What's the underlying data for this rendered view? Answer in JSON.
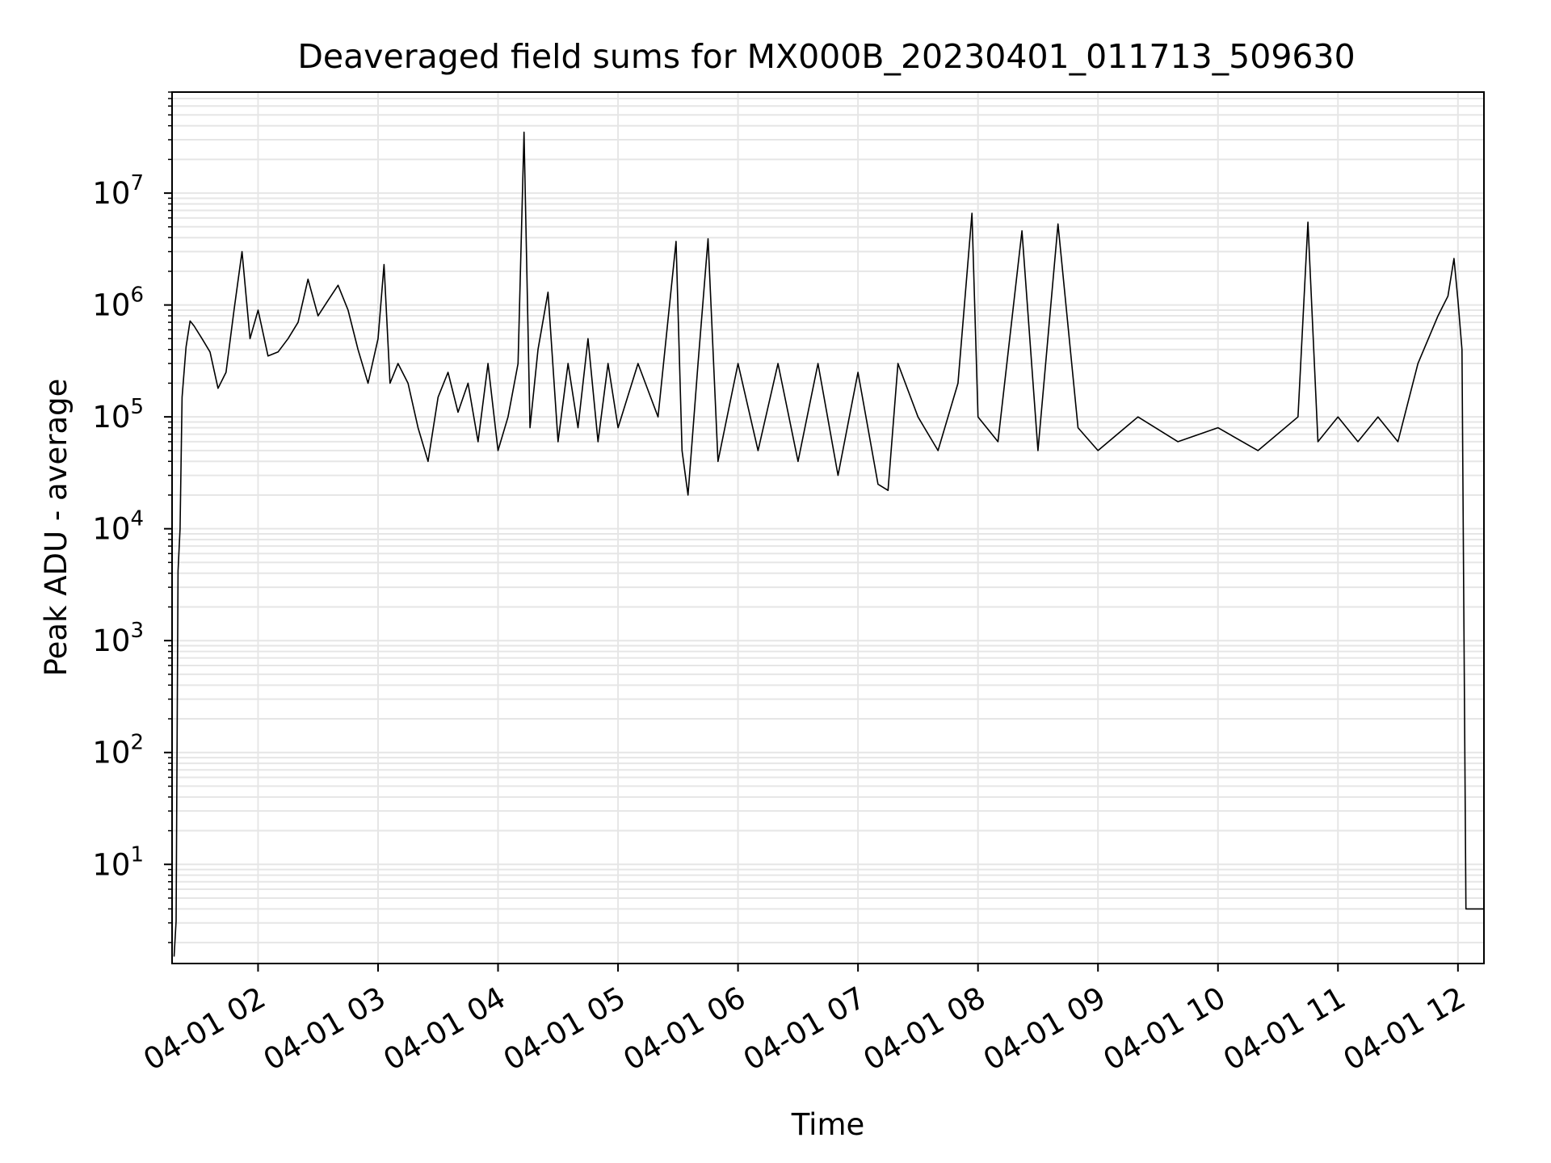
{
  "chart_data": {
    "type": "line",
    "title": "Deaveraged field sums for MX000B_20230401_011713_509630",
    "xlabel": "Time",
    "ylabel": "Peak ADU - average",
    "yscale": "log",
    "ylim": [
      1.3,
      80000000
    ],
    "xlim": [
      "2023-04-01 01:17",
      "2023-04-01 12:13"
    ],
    "grid": true,
    "line_color": "#000000",
    "grid_color": "#e6e6e6",
    "x_ticks": [
      {
        "t": "2023-04-01 02:00",
        "label": "04-01 02"
      },
      {
        "t": "2023-04-01 03:00",
        "label": "04-01 03"
      },
      {
        "t": "2023-04-01 04:00",
        "label": "04-01 04"
      },
      {
        "t": "2023-04-01 05:00",
        "label": "04-01 05"
      },
      {
        "t": "2023-04-01 06:00",
        "label": "04-01 06"
      },
      {
        "t": "2023-04-01 07:00",
        "label": "04-01 07"
      },
      {
        "t": "2023-04-01 08:00",
        "label": "04-01 08"
      },
      {
        "t": "2023-04-01 09:00",
        "label": "04-01 09"
      },
      {
        "t": "2023-04-01 10:00",
        "label": "04-01 10"
      },
      {
        "t": "2023-04-01 11:00",
        "label": "04-01 11"
      },
      {
        "t": "2023-04-01 12:00",
        "label": "04-01 12"
      }
    ],
    "y_ticks": [
      {
        "value": 10,
        "base": "10",
        "exp": "1"
      },
      {
        "value": 100,
        "base": "10",
        "exp": "2"
      },
      {
        "value": 1000,
        "base": "10",
        "exp": "3"
      },
      {
        "value": 10000,
        "base": "10",
        "exp": "4"
      },
      {
        "value": 100000,
        "base": "10",
        "exp": "5"
      },
      {
        "value": 1000000,
        "base": "10",
        "exp": "6"
      },
      {
        "value": 10000000,
        "base": "10",
        "exp": "7"
      }
    ],
    "series": [
      {
        "points": [
          [
            "2023-04-01 01:18",
            1.5
          ],
          [
            "2023-04-01 01:19",
            3.1
          ],
          [
            "2023-04-01 01:20",
            4200
          ],
          [
            "2023-04-01 01:21",
            10000
          ],
          [
            "2023-04-01 01:22",
            150000
          ],
          [
            "2023-04-01 01:24",
            420000
          ],
          [
            "2023-04-01 01:26",
            720000
          ],
          [
            "2023-04-01 01:28",
            650000
          ],
          [
            "2023-04-01 01:32",
            500000
          ],
          [
            "2023-04-01 01:36",
            380000
          ],
          [
            "2023-04-01 01:40",
            180000
          ],
          [
            "2023-04-01 01:44",
            250000
          ],
          [
            "2023-04-01 01:48",
            900000
          ],
          [
            "2023-04-01 01:52",
            3000000
          ],
          [
            "2023-04-01 01:56",
            500000
          ],
          [
            "2023-04-01 02:00",
            900000
          ],
          [
            "2023-04-01 02:05",
            350000
          ],
          [
            "2023-04-01 02:10",
            380000
          ],
          [
            "2023-04-01 02:15",
            500000
          ],
          [
            "2023-04-01 02:20",
            700000
          ],
          [
            "2023-04-01 02:25",
            1700000
          ],
          [
            "2023-04-01 02:30",
            800000
          ],
          [
            "2023-04-01 02:35",
            1100000
          ],
          [
            "2023-04-01 02:40",
            1500000
          ],
          [
            "2023-04-01 02:45",
            900000
          ],
          [
            "2023-04-01 02:50",
            400000
          ],
          [
            "2023-04-01 02:55",
            200000
          ],
          [
            "2023-04-01 03:00",
            500000
          ],
          [
            "2023-04-01 03:03",
            2300000
          ],
          [
            "2023-04-01 03:06",
            200000
          ],
          [
            "2023-04-01 03:10",
            300000
          ],
          [
            "2023-04-01 03:15",
            200000
          ],
          [
            "2023-04-01 03:20",
            80000
          ],
          [
            "2023-04-01 03:25",
            40000
          ],
          [
            "2023-04-01 03:30",
            150000
          ],
          [
            "2023-04-01 03:35",
            250000
          ],
          [
            "2023-04-01 03:40",
            110000
          ],
          [
            "2023-04-01 03:45",
            200000
          ],
          [
            "2023-04-01 03:50",
            60000
          ],
          [
            "2023-04-01 03:55",
            300000
          ],
          [
            "2023-04-01 04:00",
            50000
          ],
          [
            "2023-04-01 04:05",
            100000
          ],
          [
            "2023-04-01 04:10",
            300000
          ],
          [
            "2023-04-01 04:13",
            35000000
          ],
          [
            "2023-04-01 04:16",
            80000
          ],
          [
            "2023-04-01 04:20",
            400000
          ],
          [
            "2023-04-01 04:25",
            1300000
          ],
          [
            "2023-04-01 04:30",
            60000
          ],
          [
            "2023-04-01 04:35",
            300000
          ],
          [
            "2023-04-01 04:40",
            80000
          ],
          [
            "2023-04-01 04:45",
            500000
          ],
          [
            "2023-04-01 04:50",
            60000
          ],
          [
            "2023-04-01 04:55",
            300000
          ],
          [
            "2023-04-01 05:00",
            80000
          ],
          [
            "2023-04-01 05:10",
            300000
          ],
          [
            "2023-04-01 05:20",
            100000
          ],
          [
            "2023-04-01 05:29",
            3700000
          ],
          [
            "2023-04-01 05:32",
            50000
          ],
          [
            "2023-04-01 05:35",
            20000
          ],
          [
            "2023-04-01 05:40",
            300000
          ],
          [
            "2023-04-01 05:45",
            3900000
          ],
          [
            "2023-04-01 05:50",
            40000
          ],
          [
            "2023-04-01 06:00",
            300000
          ],
          [
            "2023-04-01 06:10",
            50000
          ],
          [
            "2023-04-01 06:20",
            300000
          ],
          [
            "2023-04-01 06:30",
            40000
          ],
          [
            "2023-04-01 06:40",
            300000
          ],
          [
            "2023-04-01 06:50",
            30000
          ],
          [
            "2023-04-01 07:00",
            250000
          ],
          [
            "2023-04-01 07:10",
            25000
          ],
          [
            "2023-04-01 07:15",
            22000
          ],
          [
            "2023-04-01 07:20",
            300000
          ],
          [
            "2023-04-01 07:30",
            100000
          ],
          [
            "2023-04-01 07:40",
            50000
          ],
          [
            "2023-04-01 07:50",
            200000
          ],
          [
            "2023-04-01 07:57",
            6600000
          ],
          [
            "2023-04-01 08:00",
            100000
          ],
          [
            "2023-04-01 08:10",
            60000
          ],
          [
            "2023-04-01 08:22",
            4600000
          ],
          [
            "2023-04-01 08:30",
            50000
          ],
          [
            "2023-04-01 08:40",
            5300000
          ],
          [
            "2023-04-01 08:50",
            80000
          ],
          [
            "2023-04-01 09:00",
            50000
          ],
          [
            "2023-04-01 09:20",
            100000
          ],
          [
            "2023-04-01 09:40",
            60000
          ],
          [
            "2023-04-01 10:00",
            80000
          ],
          [
            "2023-04-01 10:20",
            50000
          ],
          [
            "2023-04-01 10:40",
            100000
          ],
          [
            "2023-04-01 10:45",
            5500000
          ],
          [
            "2023-04-01 10:50",
            60000
          ],
          [
            "2023-04-01 11:00",
            100000
          ],
          [
            "2023-04-01 11:10",
            60000
          ],
          [
            "2023-04-01 11:20",
            100000
          ],
          [
            "2023-04-01 11:30",
            60000
          ],
          [
            "2023-04-01 11:40",
            300000
          ],
          [
            "2023-04-01 11:50",
            800000
          ],
          [
            "2023-04-01 11:55",
            1200000
          ],
          [
            "2023-04-01 11:58",
            2600000
          ],
          [
            "2023-04-01 12:00",
            1100000
          ],
          [
            "2023-04-01 12:02",
            400000
          ],
          [
            "2023-04-01 12:04",
            4
          ],
          [
            "2023-04-01 12:13",
            4
          ]
        ]
      }
    ]
  }
}
